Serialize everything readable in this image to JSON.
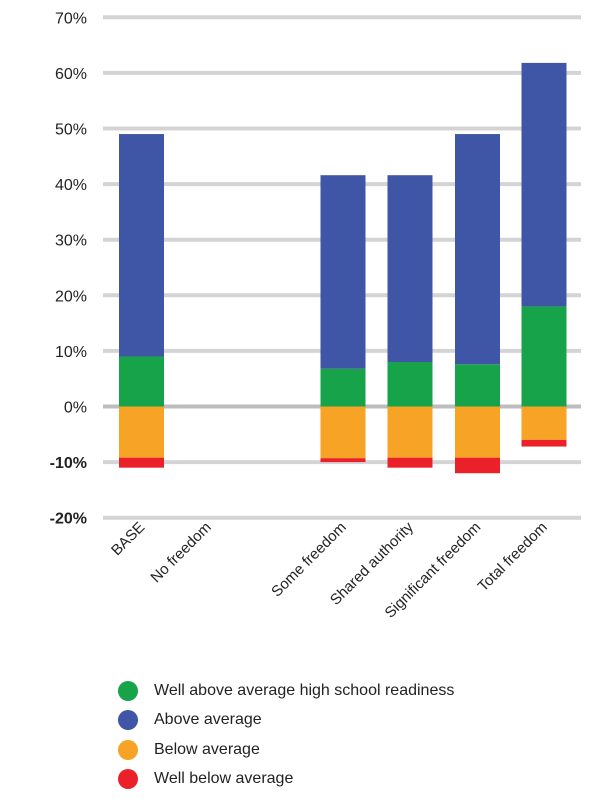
{
  "chart_data": {
    "type": "bar",
    "stacked": true,
    "categories": [
      "BASE",
      "No freedom",
      "Some freedom",
      "Shared authority",
      "Significant freedom",
      "Total freedom"
    ],
    "series": [
      {
        "name": "Well above average high school readiness",
        "color": "#16a34a",
        "values": [
          9,
          0,
          6.8,
          8,
          7.6,
          18
        ],
        "direction": "positive"
      },
      {
        "name": "Above average",
        "color": "#3f55a5",
        "values": [
          40,
          0,
          34.8,
          33.6,
          41.4,
          43.8
        ],
        "direction": "positive"
      },
      {
        "name": "Below average",
        "color": "#f7a325",
        "values": [
          -9.2,
          0,
          -9.3,
          -9.2,
          -9.2,
          -6
        ],
        "direction": "negative"
      },
      {
        "name": "Well below average",
        "color": "#ea2128",
        "values": [
          -1.8,
          0,
          -0.7,
          -1.8,
          -2.8,
          -1.2
        ],
        "direction": "negative"
      }
    ],
    "yticks": [
      {
        "value": 70,
        "label": "70%"
      },
      {
        "value": 60,
        "label": "60%"
      },
      {
        "value": 50,
        "label": "50%"
      },
      {
        "value": 40,
        "label": "40%"
      },
      {
        "value": 30,
        "label": "30%"
      },
      {
        "value": 20,
        "label": "20%"
      },
      {
        "value": 10,
        "label": "10%"
      },
      {
        "value": 0,
        "label": "0%"
      },
      {
        "value": -10,
        "label": "-10%"
      },
      {
        "value": -20,
        "label": "-20%"
      }
    ],
    "ylim": [
      -20,
      70
    ],
    "grid": true,
    "legend_position": "bottom",
    "gridline_color": "#d4d4d4",
    "zero_line_color": "#bdbdbd"
  }
}
